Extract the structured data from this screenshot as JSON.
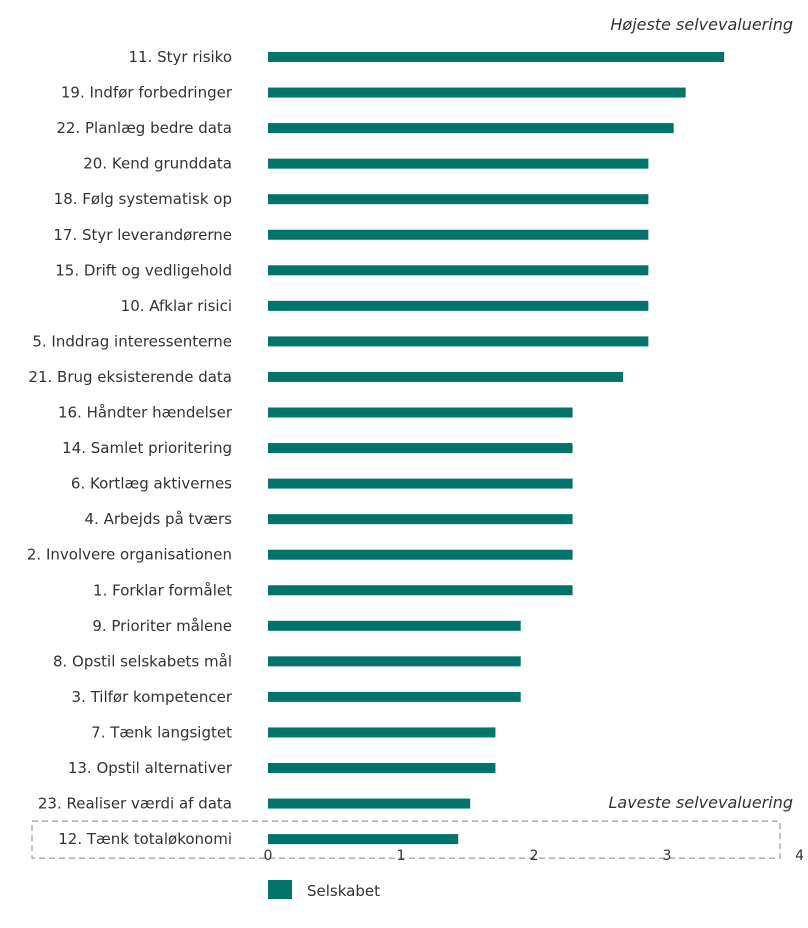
{
  "chart_data": {
    "type": "bar",
    "orientation": "horizontal",
    "categories": [
      "11. Styr risiko",
      "19. Indfør forbedringer",
      "22. Planlæg bedre data",
      "20. Kend grunddata",
      "18. Følg systematisk op",
      "17. Styr leverandørerne",
      "15. Drift og vedligehold",
      "10. Afklar risici",
      "5. Inddrag interessenterne",
      "21. Brug eksisterende data",
      "16. Håndter hændelser",
      "14. Samlet prioritering",
      "6. Kortlæg aktivernes",
      "4. Arbejds på tværs",
      "2. Involvere organisationen",
      "1. Forklar formålet",
      "9. Prioriter målene",
      "8. Opstil selskabets mål",
      "3. Tilfør kompetencer",
      "7. Tænk langsigtet",
      "13. Opstil alternativer",
      "23. Realiser værdi af data",
      "12. Tænk totaløkonomi"
    ],
    "series": [
      {
        "name": "Selskabet",
        "values": [
          3.43,
          3.14,
          3.05,
          2.86,
          2.86,
          2.86,
          2.86,
          2.86,
          2.86,
          2.67,
          2.29,
          2.29,
          2.29,
          2.29,
          2.29,
          2.29,
          1.9,
          1.9,
          1.9,
          1.71,
          1.71,
          1.52,
          1.43
        ],
        "color": "#00736b"
      }
    ],
    "xlim": [
      0,
      4
    ],
    "xticks": [
      "0",
      "1",
      "2",
      "3",
      "4"
    ],
    "grid": false,
    "legend_position": "bottom-left",
    "annotations": {
      "top": "Højeste selvevaluering",
      "bottom": "Laveste selvevaluering"
    },
    "highlighted_category": "12. Tænk totaløkonomi"
  }
}
